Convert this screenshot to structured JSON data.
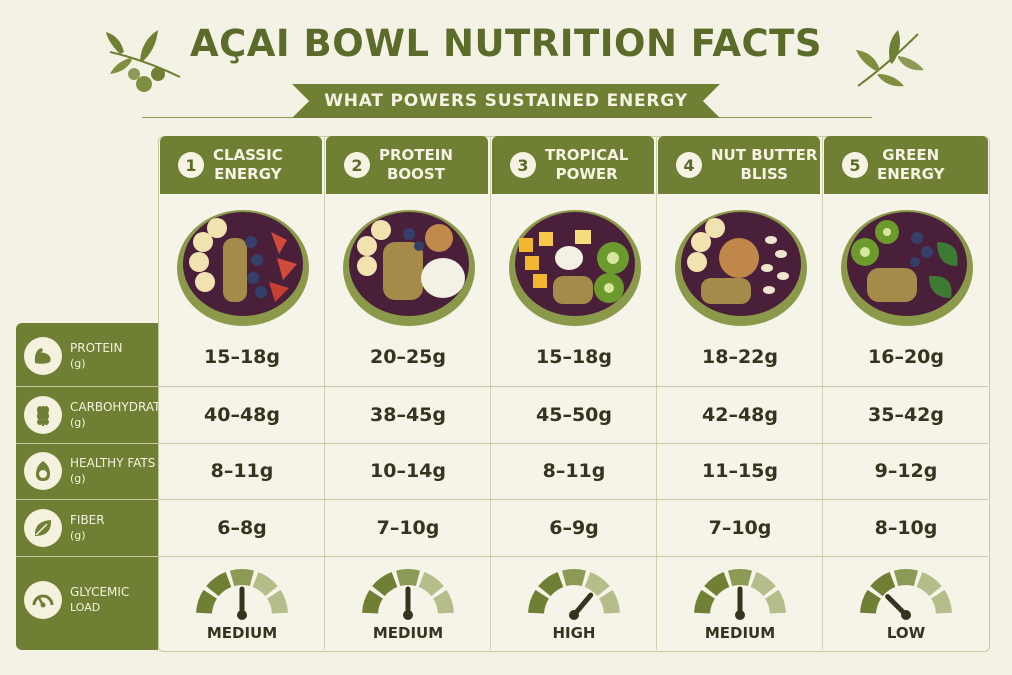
{
  "title": "AÇAI BOWL NUTRITION FACTS",
  "subtitle": "WHAT POWERS SUSTAINED ENERGY",
  "colors": {
    "accent": "#6f7f33",
    "accent_dark": "#5b6b2a",
    "background": "#f4f2e4"
  },
  "bowls": [
    {
      "number": "1",
      "name_line1": "CLASSIC",
      "name_line2": "ENERGY"
    },
    {
      "number": "2",
      "name_line1": "PROTEIN",
      "name_line2": "BOOST"
    },
    {
      "number": "3",
      "name_line1": "TROPICAL",
      "name_line2": "POWER"
    },
    {
      "number": "4",
      "name_line1": "NUT BUTTER",
      "name_line2": "BLISS"
    },
    {
      "number": "5",
      "name_line1": "GREEN",
      "name_line2": "ENERGY"
    }
  ],
  "rows": [
    {
      "icon": "muscle-icon",
      "label": "PROTEIN",
      "unit": "(g)",
      "values": [
        "15–18g",
        "20–25g",
        "15–18g",
        "18–22g",
        "16–20g"
      ]
    },
    {
      "icon": "wheat-icon",
      "label": "CARBOHYDRATES",
      "unit": "(g)",
      "values": [
        "40–48g",
        "38–45g",
        "45–50g",
        "42–48g",
        "35–42g"
      ]
    },
    {
      "icon": "avocado-icon",
      "label": "HEALTHY FATS",
      "unit": "(g)",
      "values": [
        "8–11g",
        "10–14g",
        "8–11g",
        "11–15g",
        "9–12g"
      ]
    },
    {
      "icon": "leaf-icon",
      "label": "FIBER",
      "unit": "(g)",
      "values": [
        "6–8g",
        "7–10g",
        "6–9g",
        "7–10g",
        "8–10g"
      ]
    }
  ],
  "glycemic": {
    "icon": "gauge-icon",
    "label_line1": "GLYCEMIC",
    "label_line2": "LOAD",
    "levels": [
      "MEDIUM",
      "MEDIUM",
      "HIGH",
      "MEDIUM",
      "LOW"
    ]
  }
}
